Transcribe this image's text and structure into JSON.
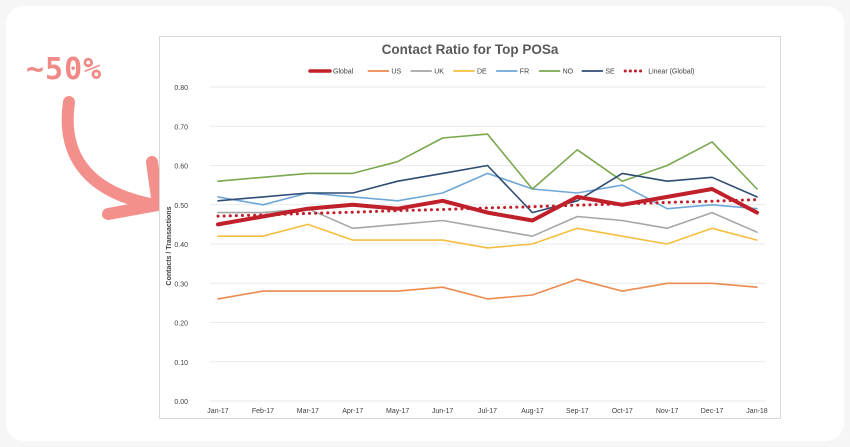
{
  "callout": {
    "text": "~50%",
    "color": "#f08a87"
  },
  "chart_data": {
    "type": "line",
    "title": "Contact Ratio for Top POSa",
    "xlabel": "",
    "ylabel": "Contacts / Transactions",
    "ylim": [
      0,
      0.8
    ],
    "yticks": [
      "0.00",
      "0.10",
      "0.20",
      "0.30",
      "0.40",
      "0.50",
      "0.60",
      "0.70",
      "0.80"
    ],
    "grid": true,
    "legend_position": "top",
    "categories": [
      "Jan-17",
      "Feb-17",
      "Mar-17",
      "Apr-17",
      "May-17",
      "Jun-17",
      "Jul-17",
      "Aug-17",
      "Sep-17",
      "Oct-17",
      "Nov-17",
      "Dec-17",
      "Jan-18"
    ],
    "series": [
      {
        "name": "Global",
        "color": "#c0202a",
        "width": 4,
        "values": [
          0.45,
          0.47,
          0.49,
          0.5,
          0.49,
          0.51,
          0.48,
          0.46,
          0.52,
          0.5,
          0.52,
          0.54,
          0.48
        ]
      },
      {
        "name": "US",
        "color": "#ed8a4e",
        "width": 1.6,
        "values": [
          0.26,
          0.28,
          0.28,
          0.28,
          0.28,
          0.29,
          0.26,
          0.27,
          0.31,
          0.28,
          0.3,
          0.3,
          0.29
        ]
      },
      {
        "name": "UK",
        "color": "#a6a6a6",
        "width": 1.6,
        "values": [
          0.48,
          0.48,
          0.49,
          0.44,
          0.45,
          0.46,
          0.44,
          0.42,
          0.47,
          0.46,
          0.44,
          0.48,
          0.43
        ]
      },
      {
        "name": "DE",
        "color": "#f5be41",
        "width": 1.6,
        "values": [
          0.42,
          0.42,
          0.45,
          0.41,
          0.41,
          0.41,
          0.39,
          0.4,
          0.44,
          0.42,
          0.4,
          0.44,
          0.41
        ]
      },
      {
        "name": "FR",
        "color": "#6fa7d8",
        "width": 1.6,
        "values": [
          0.52,
          0.5,
          0.53,
          0.52,
          0.51,
          0.53,
          0.58,
          0.54,
          0.53,
          0.55,
          0.49,
          0.5,
          0.49
        ]
      },
      {
        "name": "NO",
        "color": "#7aa84e",
        "width": 1.6,
        "values": [
          0.56,
          0.57,
          0.58,
          0.58,
          0.61,
          0.67,
          0.68,
          0.54,
          0.64,
          0.56,
          0.6,
          0.66,
          0.54
        ]
      },
      {
        "name": "SE",
        "color": "#2e4d73",
        "width": 1.6,
        "values": [
          0.51,
          0.52,
          0.53,
          0.53,
          0.56,
          0.58,
          0.6,
          0.48,
          0.51,
          0.58,
          0.56,
          0.57,
          0.52
        ]
      },
      {
        "name": "Linear (Global)",
        "color": "#c0202a",
        "width": 3,
        "dotted": true,
        "values": [
          0.471,
          0.474,
          0.478,
          0.481,
          0.485,
          0.488,
          0.492,
          0.495,
          0.499,
          0.502,
          0.506,
          0.509,
          0.513
        ]
      }
    ]
  }
}
